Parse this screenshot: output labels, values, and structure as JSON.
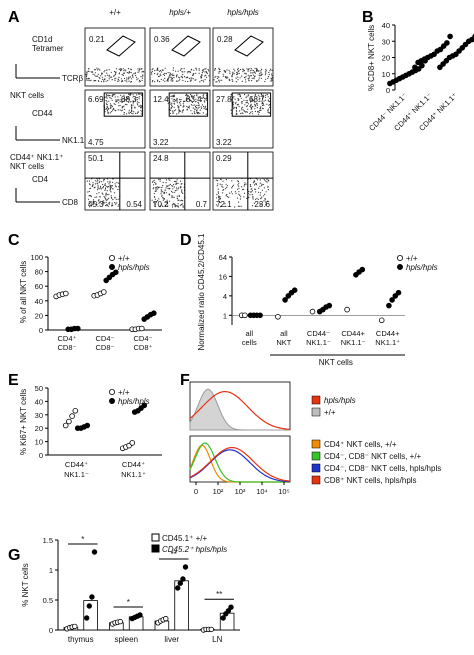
{
  "panel_letters": [
    "A",
    "B",
    "C",
    "D",
    "E",
    "F",
    "G"
  ],
  "panelA": {
    "genotypes": [
      "+/+",
      "hpls/+",
      "hpls/hpls"
    ],
    "rows": [
      {
        "ylabel": "CD1d\nTetramer",
        "xlabel": "TCRβ",
        "values": [
          [
            "0.21"
          ],
          [
            "0.36"
          ],
          [
            "0.28"
          ]
        ]
      },
      {
        "gate_label": "NKT cells",
        "ylabel": "CD44",
        "xlabel": "NK1.1",
        "values": [
          [
            "6.69",
            "88.3",
            "4.75"
          ],
          [
            "12.4",
            "83.4",
            "3.22"
          ],
          [
            "27.8",
            "68.7",
            "3.22"
          ]
        ]
      },
      {
        "gate_label": "CD44⁺ NK1.1⁺\nNKT cells",
        "ylabel": "CD4",
        "xlabel": "CD8",
        "values": [
          [
            "50.1",
            "45.3",
            "0.54"
          ],
          [
            "24.8",
            "70.2",
            "0.7"
          ],
          [
            "0.29",
            "72.1",
            "23.6"
          ]
        ]
      }
    ]
  },
  "chart_data": [
    {
      "id": "B",
      "type": "scatter",
      "ylabel": "% CD8+ NKT cells",
      "ylim": [
        0,
        40
      ],
      "yticks": [
        0,
        10,
        20,
        30,
        40
      ],
      "categories": [
        "CD44⁻ NK1.1⁻",
        "CD44⁺ NK1.1⁻",
        "CD44⁺ NK1.1⁺"
      ],
      "series": [
        {
          "values": [
            [
              4,
              5,
              6,
              7,
              8,
              9,
              10,
              11,
              12,
              13,
              15,
              18
            ],
            [
              14,
              17,
              18,
              19,
              20,
              21,
              22,
              24,
              25,
              27,
              29,
              33
            ],
            [
              14,
              16,
              18,
              20,
              21,
              22,
              24,
              26,
              28,
              30,
              31,
              33
            ]
          ]
        }
      ]
    },
    {
      "id": "C",
      "type": "scatter",
      "ylabel": "% of all NKT cells",
      "ylim": [
        0,
        100
      ],
      "yticks": [
        0,
        20,
        40,
        60,
        80,
        100
      ],
      "categories": [
        "CD4⁺\nCD8⁻",
        "CD4⁻\nCD8⁻",
        "CD4⁻\nCD8⁺"
      ],
      "series": [
        {
          "name": "+/+",
          "values": [
            [
              46,
              48,
              49,
              50
            ],
            [
              47,
              48,
              50,
              52
            ],
            [
              1,
              1,
              2,
              2
            ]
          ]
        },
        {
          "name": "hpls/hpls",
          "values": [
            [
              1,
              1,
              2,
              2
            ],
            [
              68,
              72,
              76,
              79
            ],
            [
              15,
              18,
              21,
              23
            ]
          ]
        }
      ]
    },
    {
      "id": "D",
      "type": "scatter",
      "ylabel": "Normalized ratio CD45.2/CD45.1",
      "yscale": "log2",
      "yticks": [
        "1",
        "4",
        "16",
        "64"
      ],
      "categories": [
        "all\ncells",
        "all\nNKT",
        "CD44⁻\nNK1.1⁻",
        "CD44+\nNK1.1⁻",
        "CD44+\nNK1.1⁺"
      ],
      "group_label": "NKT cells",
      "series": [
        {
          "name": "+/+",
          "values": [
            [
              1,
              1
            ],
            [
              0.9
            ],
            [
              1.3
            ],
            [
              1.5
            ],
            [
              0.7
            ]
          ]
        },
        {
          "name": "hpls/hpls",
          "values": [
            [
              1,
              1,
              1,
              1
            ],
            [
              3,
              4,
              5,
              6
            ],
            [
              1.3,
              1.5,
              1.8,
              2
            ],
            [
              18,
              22,
              26
            ],
            [
              2,
              3,
              4,
              5
            ]
          ]
        }
      ]
    },
    {
      "id": "E",
      "type": "scatter",
      "ylabel": "% Ki67+ NKT cells",
      "ylim": [
        0,
        50
      ],
      "yticks": [
        0,
        10,
        20,
        30,
        40,
        50
      ],
      "categories": [
        "CD44⁺\nNK1.1⁻",
        "CD44⁺\nNK1.1⁺"
      ],
      "series": [
        {
          "name": "+/+",
          "values": [
            [
              22,
              25,
              29,
              33
            ],
            [
              5,
              6,
              7,
              9
            ]
          ]
        },
        {
          "name": "hpls/hpls",
          "values": [
            [
              20,
              20,
              21,
              22
            ],
            [
              32,
              33,
              35,
              37
            ]
          ]
        }
      ]
    },
    {
      "id": "F",
      "type": "line",
      "xticks": [
        "0",
        "10²",
        "10³",
        "10⁴",
        "10⁵"
      ],
      "legend_top": [
        {
          "name": "hpls/hpls",
          "color": "#e63312"
        },
        {
          "name": "+/+",
          "color": "#bdbdbd"
        }
      ],
      "legend_bottom": [
        {
          "name": "CD4⁺ NKT cells, +/+",
          "color": "#f28c00"
        },
        {
          "name": "CD4⁻, CD8⁻ NKT cells, +/+",
          "color": "#39c02a"
        },
        {
          "name": "CD4⁻, CD8⁻ NKT cells, hpls/hpls",
          "color": "#2233cc"
        },
        {
          "name": "CD8⁺ NKT cells, hpls/hpls",
          "color": "#e63312"
        }
      ]
    },
    {
      "id": "G",
      "type": "bar",
      "ylabel": "% NKT cells",
      "ylim": [
        0,
        1.5
      ],
      "yticks": [
        "0.0",
        "0.5",
        "1.0",
        "1.5"
      ],
      "categories": [
        "thymus",
        "spleen",
        "liver",
        "LN"
      ],
      "significance": [
        "*",
        "*",
        "**",
        "**"
      ],
      "series": [
        {
          "name": "CD45.1⁺ +/+",
          "values": [
            0.04,
            0.12,
            0.15,
            0.01
          ],
          "points": [
            [
              0.02,
              0.04,
              0.05,
              0.06
            ],
            [
              0.1,
              0.12,
              0.13,
              0.14
            ],
            [
              0.12,
              0.15,
              0.17,
              0.19
            ],
            [
              0.0,
              0.01,
              0.01,
              0.01
            ]
          ]
        },
        {
          "name": "CD45.2⁺ hpls/hpls",
          "values": [
            0.49,
            0.22,
            0.82,
            0.28
          ],
          "points": [
            [
              0.2,
              0.4,
              0.55,
              1.3
            ],
            [
              0.19,
              0.21,
              0.23,
              0.25
            ],
            [
              0.7,
              0.78,
              0.85,
              1.05
            ],
            [
              0.2,
              0.27,
              0.32,
              0.38
            ]
          ]
        }
      ]
    }
  ]
}
